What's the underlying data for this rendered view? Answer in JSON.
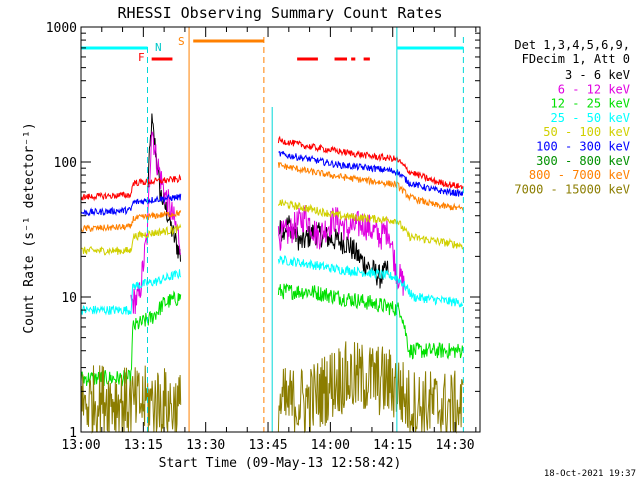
{
  "chart_data": {
    "type": "line",
    "title": "RHESSI Observing Summary Count Rates",
    "xlabel": "Start Time (09-May-13 12:58:42)",
    "ylabel": "Count Rate (s⁻¹ detector⁻¹)",
    "yscale": "log",
    "ylim": [
      1,
      1000
    ],
    "xlim_minutes_after_13_00": [
      0,
      96
    ],
    "x_tick_labels": [
      "13:00",
      "13:15",
      "13:30",
      "13:45",
      "14:00",
      "14:15",
      "14:30"
    ],
    "y_tick_labels": [
      "1",
      "10",
      "100",
      "1000"
    ],
    "legend_header": [
      "Det 1,3,4,5,6,9,",
      "FDecim 1, Att 0"
    ],
    "legend_position": "right",
    "timestamp": "18-Oct-2021 19:37",
    "flag_labels": {
      "night": "N",
      "saa": "S",
      "flare": "F"
    },
    "series": [
      {
        "name": "3 - 6 keV",
        "color": "#000000",
        "day1": [
          [
            16,
            60
          ],
          [
            17,
            200
          ],
          [
            18,
            120
          ],
          [
            19,
            60
          ],
          [
            21,
            40
          ],
          [
            22,
            30
          ],
          [
            24,
            20
          ]
        ],
        "day2": [
          [
            47.5,
            30
          ],
          [
            50,
            35
          ],
          [
            53,
            25
          ],
          [
            56,
            30
          ],
          [
            60,
            27
          ],
          [
            64,
            25
          ],
          [
            68,
            18
          ],
          [
            72,
            14
          ],
          [
            74,
            16
          ]
        ]
      },
      {
        "name": "6 - 12 keV",
        "color": "#e000e0",
        "day1": [
          [
            12,
            9
          ],
          [
            14,
            10
          ],
          [
            16,
            30
          ],
          [
            17,
            190
          ],
          [
            18,
            110
          ],
          [
            20,
            60
          ],
          [
            22,
            40
          ],
          [
            24,
            25
          ]
        ],
        "day2": [
          [
            47.5,
            28
          ],
          [
            50,
            30
          ],
          [
            54,
            40
          ],
          [
            57,
            28
          ],
          [
            61,
            38
          ],
          [
            64,
            32
          ],
          [
            68,
            35
          ],
          [
            72,
            28
          ],
          [
            74,
            32
          ],
          [
            76,
            15
          ],
          [
            78,
            12
          ]
        ]
      },
      {
        "name": "12 - 25 keV",
        "color": "#00e000",
        "day1": [
          [
            0,
            2.5
          ],
          [
            12,
            2.5
          ],
          [
            12.5,
            6
          ],
          [
            17,
            7
          ],
          [
            20,
            9
          ],
          [
            24,
            10
          ]
        ],
        "day2": [
          [
            47.5,
            11
          ],
          [
            55,
            11
          ],
          [
            62,
            10
          ],
          [
            70,
            9
          ],
          [
            77,
            8
          ],
          [
            79,
            4
          ],
          [
            92,
            4
          ]
        ]
      },
      {
        "name": "25 - 50 keV",
        "color": "#00ffff",
        "day1": [
          [
            0,
            8
          ],
          [
            12,
            8
          ],
          [
            12.5,
            12
          ],
          [
            18,
            13
          ],
          [
            24,
            15
          ]
        ],
        "day2": [
          [
            47.5,
            19
          ],
          [
            55,
            17.5
          ],
          [
            62,
            16
          ],
          [
            70,
            15
          ],
          [
            76,
            14
          ],
          [
            78,
            12
          ],
          [
            80,
            10
          ],
          [
            92,
            9
          ]
        ]
      },
      {
        "name": "50 - 100 keV",
        "color": "#d0d000",
        "day1": [
          [
            0,
            22
          ],
          [
            12,
            22
          ],
          [
            12.5,
            28
          ],
          [
            18,
            30
          ],
          [
            24,
            32
          ]
        ],
        "day2": [
          [
            47.5,
            50
          ],
          [
            55,
            45
          ],
          [
            62,
            40
          ],
          [
            70,
            38
          ],
          [
            76,
            37
          ],
          [
            79,
            28
          ],
          [
            92,
            24
          ]
        ]
      },
      {
        "name": "100 - 300 keV",
        "color": "#0000ff",
        "day1": [
          [
            0,
            42
          ],
          [
            12,
            44
          ],
          [
            12.5,
            50
          ],
          [
            18,
            53
          ],
          [
            24,
            55
          ]
        ],
        "day2": [
          [
            47.5,
            115
          ],
          [
            55,
            105
          ],
          [
            62,
            95
          ],
          [
            70,
            90
          ],
          [
            76,
            85
          ],
          [
            79,
            70
          ],
          [
            85,
            62
          ],
          [
            92,
            58
          ]
        ]
      },
      {
        "name": "300 - 800 keV",
        "color": "#009000",
        "day1": [],
        "day2": []
      },
      {
        "name": "800 - 7000 keV",
        "color": "#ff8000",
        "day1": [
          [
            0,
            32
          ],
          [
            12,
            33
          ],
          [
            12.5,
            38
          ],
          [
            18,
            40
          ],
          [
            24,
            42
          ]
        ],
        "day2": [
          [
            47.5,
            95
          ],
          [
            55,
            85
          ],
          [
            62,
            78
          ],
          [
            70,
            72
          ],
          [
            76,
            68
          ],
          [
            79,
            55
          ],
          [
            85,
            48
          ],
          [
            92,
            45
          ]
        ]
      },
      {
        "name": "7000 - 15000 keV",
        "color": "#8b7d00",
        "day1": [
          [
            0,
            1.6
          ],
          [
            6,
            1.8
          ],
          [
            12,
            1.6
          ],
          [
            18,
            1.7
          ],
          [
            24,
            1.5
          ]
        ],
        "day2": [
          [
            47.5,
            1.6
          ],
          [
            55,
            1.7
          ],
          [
            62,
            2.5
          ],
          [
            70,
            2.5
          ],
          [
            76,
            2.2
          ],
          [
            79,
            1.6
          ],
          [
            92,
            1.5
          ]
        ]
      }
    ],
    "red_curve": {
      "name": "red-high",
      "day1": [
        [
          0,
          55
        ],
        [
          12,
          57
        ],
        [
          12.5,
          70
        ],
        [
          18,
          72
        ],
        [
          24,
          75
        ]
      ],
      "day2": [
        [
          47.5,
          145
        ],
        [
          55,
          130
        ],
        [
          62,
          120
        ],
        [
          70,
          110
        ],
        [
          76,
          105
        ],
        [
          79,
          85
        ],
        [
          85,
          72
        ],
        [
          92,
          65
        ]
      ]
    }
  }
}
